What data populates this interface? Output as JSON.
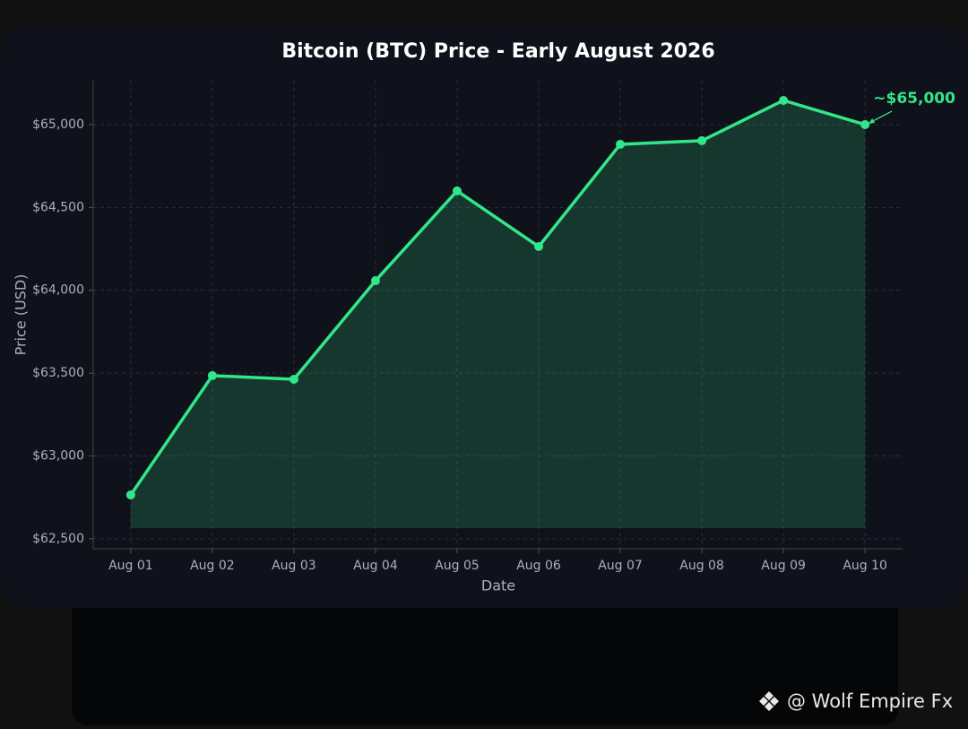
{
  "chart_data": {
    "type": "area-line",
    "title": "Bitcoin (BTC) Price - Early August 2026",
    "x_label": "Date",
    "y_label": "Price (USD)",
    "categories": [
      "Aug 01",
      "Aug 02",
      "Aug 03",
      "Aug 04",
      "Aug 05",
      "Aug 06",
      "Aug 07",
      "Aug 08",
      "Aug 09",
      "Aug 10"
    ],
    "series": [
      {
        "name": "BTC",
        "color": "#33e68a",
        "values": [
          62765,
          63485,
          63463,
          64058,
          64600,
          64264,
          64881,
          64903,
          65146,
          65000
        ]
      }
    ],
    "ylim": [
      62440,
      65265
    ],
    "yticks": [
      {
        "value": 62500,
        "label": "$62,500"
      },
      {
        "value": 63000,
        "label": "$63,000"
      },
      {
        "value": 63500,
        "label": "$63,500"
      },
      {
        "value": 64000,
        "label": "$64,000"
      },
      {
        "value": 64500,
        "label": "$64,500"
      },
      {
        "value": 65000,
        "label": "$65,000"
      }
    ],
    "grid": true,
    "annotation": {
      "text": "~$65,000"
    }
  },
  "watermark": "@ Wolf Empire Fx"
}
